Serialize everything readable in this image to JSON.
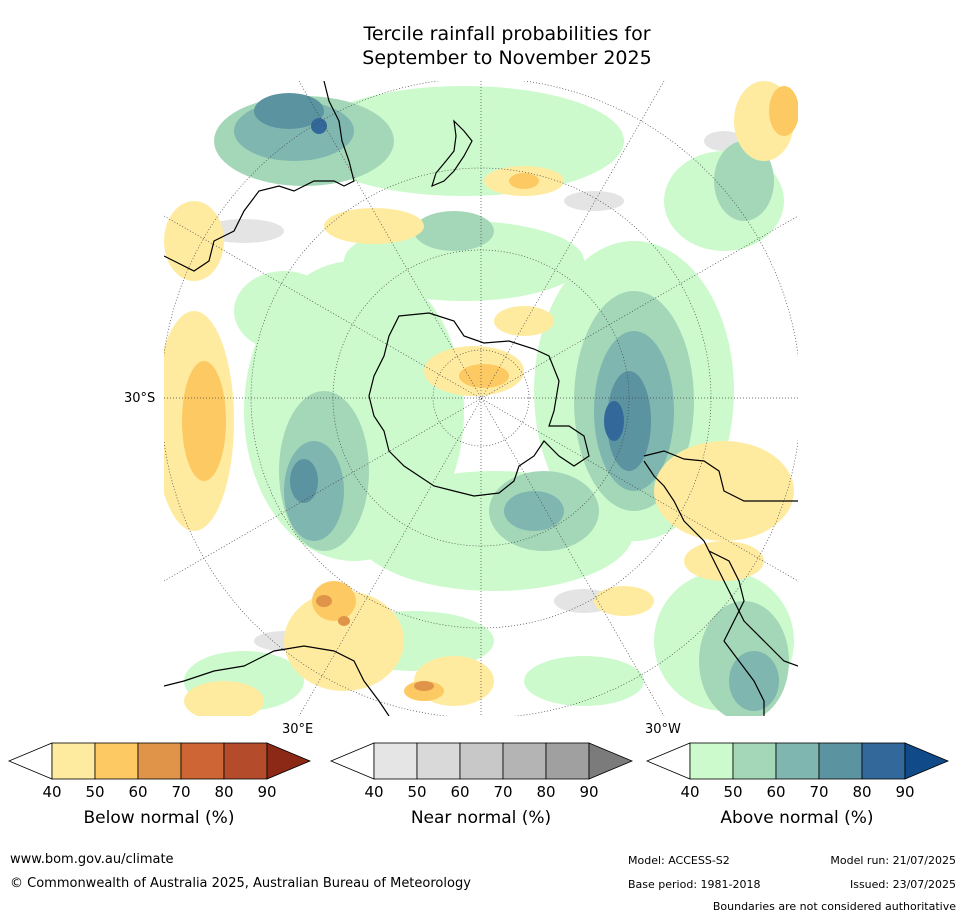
{
  "title": {
    "line1": "Tercile rainfall probabilities for",
    "line2": "September to November 2025"
  },
  "map": {
    "tick_labels": {
      "lat_left": "30°S",
      "lon_bottom_left": "30°E",
      "lon_bottom_right": "30°W"
    }
  },
  "legends": {
    "below": {
      "label": "Below normal (%)",
      "ticks": [
        "40",
        "50",
        "60",
        "70",
        "80",
        "90"
      ],
      "colors": [
        "#ffffff",
        "#ffeba0",
        "#fdc963",
        "#e09449",
        "#cd6634",
        "#b44c2b",
        "#8b2816"
      ]
    },
    "near": {
      "label": "Near normal (%)",
      "ticks": [
        "40",
        "50",
        "60",
        "70",
        "80",
        "90"
      ],
      "colors": [
        "#ffffff",
        "#e5e5e5",
        "#d9d9d9",
        "#c8c8c8",
        "#b4b4b4",
        "#a0a0a0",
        "#7b7b7b"
      ]
    },
    "above": {
      "label": "Above normal (%)",
      "ticks": [
        "40",
        "50",
        "60",
        "70",
        "80",
        "90"
      ],
      "colors": [
        "#ffffff",
        "#ccfacc",
        "#a3d7b8",
        "#7fb6b0",
        "#5b93a0",
        "#33689b",
        "#104a88"
      ]
    }
  },
  "footer": {
    "url": "www.bom.gov.au/climate",
    "copyright": "© Commonwealth of Australia 2025, Australian Bureau of Meteorology",
    "model": "Model: ACCESS-S2",
    "base_period": "Base period: 1981-2018",
    "model_run": "Model run: 21/07/2025",
    "issued": "Issued: 23/07/2025",
    "disclaimer": "Boundaries are not considered authoritative"
  }
}
